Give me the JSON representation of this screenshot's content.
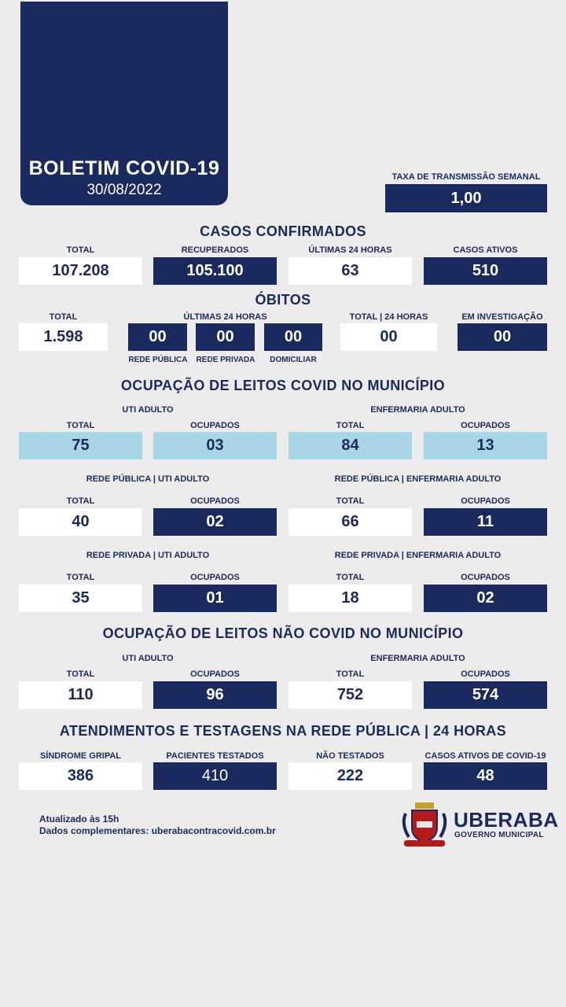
{
  "header": {
    "title": "BOLETIM COVID-19",
    "date": "30/08/2022"
  },
  "taxa": {
    "label": "TAXA DE TRANSMISSÃO SEMANAL",
    "value": "1,00"
  },
  "casos": {
    "title": "CASOS CONFIRMADOS",
    "items": [
      {
        "label": "TOTAL",
        "value": "107.208"
      },
      {
        "label": "RECUPERADOS",
        "value": "105.100"
      },
      {
        "label": "ÚLTIMAS 24 HORAS",
        "value": "63"
      },
      {
        "label": "CASOS ATIVOS",
        "value": "510"
      }
    ]
  },
  "obitos": {
    "title": "ÓBITOS",
    "total_label": "TOTAL",
    "total_value": "1.598",
    "ult_label": "ÚLTIMAS 24 HORAS",
    "ult": [
      {
        "label": "REDE PÚBLICA",
        "value": "00"
      },
      {
        "label": "REDE PRIVADA",
        "value": "00"
      },
      {
        "label": "DOMICILIAR",
        "value": "00"
      }
    ],
    "total24_label": "TOTAL | 24 HORAS",
    "total24_value": "00",
    "invest_label": "EM INVESTIGAÇÃO",
    "invest_value": "00"
  },
  "covid": {
    "title": "OCUPAÇÃO DE LEITOS COVID NO MUNICÍPIO",
    "uti_label": "UTI ADULTO",
    "enf_label": "ENFERMARIA ADULTO",
    "total_label": "TOTAL",
    "ocup_label": "OCUPADOS",
    "geral": {
      "uti_total": "75",
      "uti_ocup": "03",
      "enf_total": "84",
      "enf_ocup": "13"
    },
    "pub_uti_label": "REDE PÚBLICA | UTI ADULTO",
    "pub_enf_label": "REDE PÚBLICA | ENFERMARIA ADULTO",
    "pub": {
      "uti_total": "40",
      "uti_ocup": "02",
      "enf_total": "66",
      "enf_ocup": "11"
    },
    "priv_uti_label": "REDE PRIVADA | UTI ADULTO",
    "priv_enf_label": "REDE PRIVADA | ENFERMARIA ADULTO",
    "priv": {
      "uti_total": "35",
      "uti_ocup": "01",
      "enf_total": "18",
      "enf_ocup": "02"
    }
  },
  "naocovid": {
    "title": "OCUPAÇÃO DE LEITOS NÃO COVID NO MUNICÍPIO",
    "uti_label": "UTI ADULTO",
    "enf_label": "ENFERMARIA ADULTO",
    "total_label": "TOTAL",
    "ocup_label": "OCUPADOS",
    "uti_total": "110",
    "uti_ocup": "96",
    "enf_total": "752",
    "enf_ocup": "574"
  },
  "atend": {
    "title": "ATENDIMENTOS E TESTAGENS NA REDE PÚBLICA | 24 HORAS",
    "items": [
      {
        "label": "SÍNDROME GRIPAL",
        "value": "386"
      },
      {
        "label": "PACIENTES TESTADOS",
        "value": "410"
      },
      {
        "label": "NÃO TESTADOS",
        "value": "222"
      },
      {
        "label": "CASOS ATIVOS DE COVID-19",
        "value": "48"
      }
    ]
  },
  "footer": {
    "updated": "Atualizado às 15h",
    "complement": "Dados complementares: uberabacontracovid.com.br"
  },
  "brand": {
    "name": "UBERABA",
    "sub": "GOVERNO MUNICIPAL"
  },
  "colors": {
    "navy": "#1b2a5e",
    "light_blue": "#a9d6e6",
    "background": "#ececec"
  }
}
